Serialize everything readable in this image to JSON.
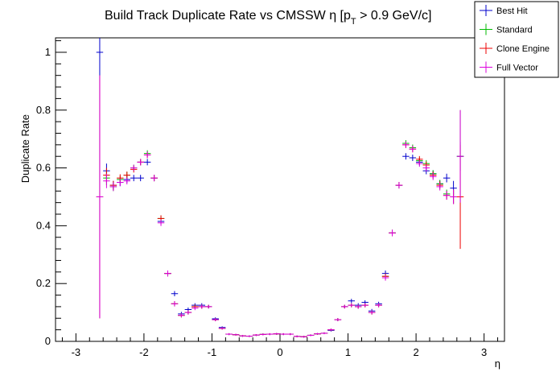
{
  "chart_data": {
    "type": "scatter",
    "title_main": "Build Track Duplicate Rate vs CMSSW η [p",
    "title_sub": "T",
    "title_tail": " > 0.9 GeV/c]",
    "xlabel": "η",
    "ylabel": "Duplicate Rate",
    "xlim": [
      -3.3,
      3.3
    ],
    "ylim": [
      0,
      1.05
    ],
    "xticks": [
      -3,
      -2,
      -1,
      0,
      1,
      2,
      3
    ],
    "xtick_labels": [
      "-3",
      "-2",
      "-1",
      "0",
      "1",
      "2",
      "3"
    ],
    "yticks": [
      0,
      0.2,
      0.4,
      0.6,
      0.8,
      1
    ],
    "ytick_labels": [
      "0",
      "0.2",
      "0.4",
      "0.6",
      "0.8",
      "1"
    ],
    "bin_half_width": 0.05,
    "legend_position": "top-right",
    "series": [
      {
        "name": "Best Hit",
        "color": "#0000cc",
        "x": [
          -2.65,
          -2.55,
          -2.45,
          -2.35,
          -2.25,
          -2.15,
          -2.05,
          -1.95,
          -1.85,
          -1.75,
          -1.65,
          -1.55,
          -1.45,
          -1.35,
          -1.25,
          -1.15,
          -1.05,
          -0.95,
          -0.85,
          -0.75,
          -0.65,
          -0.55,
          -0.45,
          -0.35,
          -0.25,
          -0.15,
          -0.05,
          0.05,
          0.15,
          0.25,
          0.35,
          0.45,
          0.55,
          0.65,
          0.75,
          0.85,
          0.95,
          1.05,
          1.15,
          1.25,
          1.35,
          1.45,
          1.55,
          1.65,
          1.75,
          1.85,
          1.95,
          2.05,
          2.15,
          2.25,
          2.35,
          2.45,
          2.55,
          2.65
        ],
        "y": [
          1.0,
          0.59,
          0.54,
          0.55,
          0.56,
          0.565,
          0.565,
          0.62,
          0.565,
          0.415,
          0.235,
          0.165,
          0.095,
          0.11,
          0.125,
          0.125,
          0.12,
          0.078,
          0.048,
          0.025,
          0.023,
          0.019,
          0.018,
          0.022,
          0.024,
          0.025,
          0.026,
          0.025,
          0.025,
          0.017,
          0.016,
          0.021,
          0.026,
          0.028,
          0.038,
          0.075,
          0.12,
          0.14,
          0.125,
          0.135,
          0.105,
          0.13,
          0.235,
          0.375,
          0.54,
          0.64,
          0.635,
          0.62,
          0.59,
          0.58,
          0.545,
          0.565,
          0.53,
          0.64
        ],
        "err": [
          0.08,
          0.025,
          0.015,
          0.013,
          0.012,
          0.011,
          0.011,
          0.011,
          0.011,
          0.011,
          0.01,
          0.009,
          0.007,
          0.007,
          0.007,
          0.007,
          0.006,
          0.005,
          0.004,
          0.003,
          0.003,
          0.003,
          0.003,
          0.003,
          0.003,
          0.003,
          0.003,
          0.003,
          0.003,
          0.003,
          0.003,
          0.003,
          0.003,
          0.003,
          0.004,
          0.005,
          0.006,
          0.007,
          0.007,
          0.007,
          0.007,
          0.007,
          0.01,
          0.011,
          0.011,
          0.011,
          0.011,
          0.011,
          0.012,
          0.012,
          0.013,
          0.015,
          0.025,
          0.05
        ]
      },
      {
        "name": "Standard",
        "color": "#00bb00",
        "x": [
          -2.65,
          -2.55,
          -2.45,
          -2.35,
          -2.25,
          -2.15,
          -2.05,
          -1.95,
          -1.85,
          -1.75,
          -1.65,
          -1.55,
          -1.45,
          -1.35,
          -1.25,
          -1.15,
          -1.05,
          -0.95,
          -0.85,
          -0.75,
          -0.65,
          -0.55,
          -0.45,
          -0.35,
          -0.25,
          -0.15,
          -0.05,
          0.05,
          0.15,
          0.25,
          0.35,
          0.45,
          0.55,
          0.65,
          0.75,
          0.85,
          0.95,
          1.05,
          1.15,
          1.25,
          1.35,
          1.45,
          1.55,
          1.65,
          1.75,
          1.85,
          1.95,
          2.05,
          2.15,
          2.25,
          2.35,
          2.45,
          2.55,
          2.65
        ],
        "y": [
          0.5,
          0.565,
          0.535,
          0.56,
          0.575,
          0.6,
          0.62,
          0.65,
          0.565,
          0.425,
          0.235,
          0.13,
          0.09,
          0.1,
          0.12,
          0.12,
          0.12,
          0.075,
          0.045,
          0.025,
          0.023,
          0.019,
          0.018,
          0.022,
          0.024,
          0.025,
          0.026,
          0.025,
          0.025,
          0.017,
          0.016,
          0.021,
          0.026,
          0.028,
          0.04,
          0.075,
          0.12,
          0.125,
          0.12,
          0.125,
          0.1,
          0.125,
          0.225,
          0.375,
          0.54,
          0.685,
          0.67,
          0.625,
          0.615,
          0.58,
          0.545,
          0.51,
          0.5,
          0.64
        ],
        "err": [
          0.42,
          0.025,
          0.015,
          0.013,
          0.012,
          0.011,
          0.011,
          0.011,
          0.011,
          0.011,
          0.01,
          0.009,
          0.007,
          0.007,
          0.007,
          0.007,
          0.006,
          0.005,
          0.004,
          0.003,
          0.003,
          0.003,
          0.003,
          0.003,
          0.003,
          0.003,
          0.003,
          0.003,
          0.003,
          0.003,
          0.003,
          0.003,
          0.003,
          0.003,
          0.004,
          0.005,
          0.006,
          0.007,
          0.007,
          0.007,
          0.007,
          0.007,
          0.01,
          0.011,
          0.011,
          0.011,
          0.011,
          0.011,
          0.012,
          0.012,
          0.013,
          0.015,
          0.025,
          0.16
        ]
      },
      {
        "name": "Clone Engine",
        "color": "#ee0000",
        "x": [
          -2.65,
          -2.55,
          -2.45,
          -2.35,
          -2.25,
          -2.15,
          -2.05,
          -1.95,
          -1.85,
          -1.75,
          -1.65,
          -1.55,
          -1.45,
          -1.35,
          -1.25,
          -1.15,
          -1.05,
          -0.95,
          -0.85,
          -0.75,
          -0.65,
          -0.55,
          -0.45,
          -0.35,
          -0.25,
          -0.15,
          -0.05,
          0.05,
          0.15,
          0.25,
          0.35,
          0.45,
          0.55,
          0.65,
          0.75,
          0.85,
          0.95,
          1.05,
          1.15,
          1.25,
          1.35,
          1.45,
          1.55,
          1.65,
          1.75,
          1.85,
          1.95,
          2.05,
          2.15,
          2.25,
          2.35,
          2.45,
          2.55,
          2.65
        ],
        "y": [
          0.5,
          0.575,
          0.54,
          0.565,
          0.575,
          0.595,
          0.62,
          0.645,
          0.565,
          0.425,
          0.235,
          0.13,
          0.09,
          0.1,
          0.12,
          0.12,
          0.12,
          0.075,
          0.045,
          0.025,
          0.023,
          0.019,
          0.018,
          0.022,
          0.024,
          0.025,
          0.026,
          0.025,
          0.025,
          0.017,
          0.016,
          0.021,
          0.026,
          0.028,
          0.04,
          0.075,
          0.12,
          0.125,
          0.12,
          0.125,
          0.1,
          0.125,
          0.225,
          0.375,
          0.54,
          0.68,
          0.665,
          0.63,
          0.61,
          0.575,
          0.54,
          0.505,
          0.5,
          0.5
        ],
        "err": [
          0.42,
          0.025,
          0.015,
          0.013,
          0.012,
          0.011,
          0.011,
          0.011,
          0.011,
          0.011,
          0.01,
          0.009,
          0.007,
          0.007,
          0.007,
          0.007,
          0.006,
          0.005,
          0.004,
          0.003,
          0.003,
          0.003,
          0.003,
          0.003,
          0.003,
          0.003,
          0.003,
          0.003,
          0.003,
          0.003,
          0.003,
          0.003,
          0.003,
          0.003,
          0.004,
          0.005,
          0.006,
          0.007,
          0.007,
          0.007,
          0.007,
          0.007,
          0.01,
          0.011,
          0.011,
          0.011,
          0.011,
          0.011,
          0.012,
          0.012,
          0.013,
          0.015,
          0.025,
          0.18
        ]
      },
      {
        "name": "Full Vector",
        "color": "#dd00dd",
        "x": [
          -2.65,
          -2.55,
          -2.45,
          -2.35,
          -2.25,
          -2.15,
          -2.05,
          -1.95,
          -1.85,
          -1.75,
          -1.65,
          -1.55,
          -1.45,
          -1.35,
          -1.25,
          -1.15,
          -1.05,
          -0.95,
          -0.85,
          -0.75,
          -0.65,
          -0.55,
          -0.45,
          -0.35,
          -0.25,
          -0.15,
          -0.05,
          0.05,
          0.15,
          0.25,
          0.35,
          0.45,
          0.55,
          0.65,
          0.75,
          0.85,
          0.95,
          1.05,
          1.15,
          1.25,
          1.35,
          1.45,
          1.55,
          1.65,
          1.75,
          1.85,
          1.95,
          2.05,
          2.15,
          2.25,
          2.35,
          2.45,
          2.55,
          2.65
        ],
        "y": [
          0.5,
          0.555,
          0.535,
          0.55,
          0.555,
          0.6,
          0.62,
          0.645,
          0.565,
          0.41,
          0.235,
          0.13,
          0.09,
          0.1,
          0.115,
          0.12,
          0.12,
          0.075,
          0.045,
          0.025,
          0.023,
          0.019,
          0.018,
          0.022,
          0.024,
          0.025,
          0.026,
          0.025,
          0.025,
          0.017,
          0.016,
          0.021,
          0.026,
          0.028,
          0.04,
          0.075,
          0.12,
          0.125,
          0.12,
          0.125,
          0.1,
          0.125,
          0.22,
          0.375,
          0.54,
          0.68,
          0.665,
          0.615,
          0.6,
          0.57,
          0.535,
          0.505,
          0.5,
          0.64
        ],
        "err": [
          0.42,
          0.025,
          0.015,
          0.013,
          0.012,
          0.011,
          0.011,
          0.011,
          0.011,
          0.011,
          0.01,
          0.009,
          0.007,
          0.007,
          0.007,
          0.007,
          0.006,
          0.005,
          0.004,
          0.003,
          0.003,
          0.003,
          0.003,
          0.003,
          0.003,
          0.003,
          0.003,
          0.003,
          0.003,
          0.003,
          0.003,
          0.003,
          0.003,
          0.003,
          0.004,
          0.005,
          0.006,
          0.007,
          0.007,
          0.007,
          0.007,
          0.007,
          0.01,
          0.011,
          0.011,
          0.011,
          0.011,
          0.011,
          0.012,
          0.012,
          0.013,
          0.015,
          0.025,
          0.16
        ]
      }
    ]
  }
}
